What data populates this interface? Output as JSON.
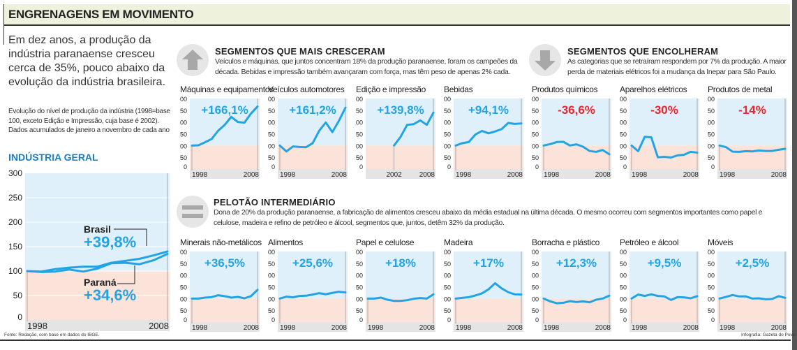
{
  "header": {
    "title": "ENGRENAGENS EM MOVIMENTO"
  },
  "intro": "Em dez anos, a produção da indústria paranaense cresceu cerca de 35%, pouco abaixo da evolução da indústria brasileira.",
  "caption": "Evolução do nível de produção da indústria (1998=base 100, exceto Edição e Impressão, cuja base é 2002). Dados acumulados de janeiro a novembro de cada ano",
  "footer": {
    "source": "Fonte: Redação, com base em dados do IBGE.",
    "credit": "Infografia: Gazeta do Povo"
  },
  "sections": [
    {
      "icon": "arrow-up-icon",
      "heading": "SEGMENTOS QUE MAIS CRESCERAM",
      "text": "Veículos e máquinas, que juntos concentram 18% da produção paranaense, foram os campeões da década. Bebidas e impressão também avançaram com força, mas têm peso de apenas 2% cada."
    },
    {
      "icon": "arrow-down-icon",
      "heading": "SEGMENTOS QUE ENCOLHERAM",
      "text": "As categorias que se retraíram respondem por 7% da produção. A maior perda de materiais elétricos foi a mudança da Inepar para São Paulo."
    },
    {
      "icon": "equals-icon",
      "heading": "PELOTÃO INTERMEDIÁRIO",
      "text": "Dona de 20% da produção paranaense, a fabricação de alimentos cresceu abaixo da média estadual na última década. O mesmo ocorreu com segmentos importantes como papel e celulose, madeira e refino de petróleo e álcool, segmentos que, juntos, detêm 32% da produção."
    }
  ],
  "colors": {
    "line": "#22a4e4",
    "positive": "#22a4e4",
    "negative": "#e8262f",
    "above_base": "#dff0fb",
    "below_base": "#fbe3d9",
    "year_band": "#e4e4e4"
  },
  "chart_data": [
    {
      "type": "line",
      "title": "INDÚSTRIA GERAL",
      "x": [
        1998,
        1999,
        2000,
        2001,
        2002,
        2003,
        2004,
        2005,
        2006,
        2007,
        2008
      ],
      "ylim": [
        0,
        300
      ],
      "yticks": [
        0,
        50,
        100,
        150,
        200,
        250,
        300
      ],
      "xticks": [
        "1998",
        "2008"
      ],
      "base": 100,
      "series": [
        {
          "name": "Brasil",
          "label": "+39,8%",
          "values": [
            100,
            99,
            104,
            107,
            109,
            109,
            117,
            121,
            125,
            132,
            140
          ]
        },
        {
          "name": "Paraná",
          "label": "+34,6%",
          "values": [
            100,
            98,
            99,
            103,
            99,
            105,
            116,
            117,
            114,
            122,
            135
          ]
        }
      ]
    },
    {
      "type": "line",
      "title": "Máquinas e equipamentos",
      "label": "+166,1%",
      "x_start": 1998,
      "xticks": [
        "1998",
        "2008"
      ],
      "ylim": [
        0,
        300
      ],
      "values": [
        100,
        101,
        114,
        128,
        163,
        188,
        222,
        200,
        197,
        236,
        266
      ]
    },
    {
      "type": "line",
      "title": "Veículos automotores",
      "label": "+161,2%",
      "x_start": 1998,
      "xticks": [
        "1998",
        "2008"
      ],
      "ylim": [
        0,
        300
      ],
      "values": [
        100,
        75,
        96,
        94,
        93,
        110,
        163,
        198,
        157,
        205,
        261
      ]
    },
    {
      "type": "line",
      "title": "Edição e impressão",
      "label": "+139,8%",
      "x_start": 2002,
      "xticks": [
        "2002",
        "2008"
      ],
      "ylim": [
        0,
        300
      ],
      "values": [
        100,
        137,
        188,
        191,
        207,
        188,
        240
      ]
    },
    {
      "type": "line",
      "title": "Bebidas",
      "label": "+94,1%",
      "x_start": 1998,
      "xticks": [
        "1998",
        "2008"
      ],
      "ylim": [
        0,
        300
      ],
      "values": [
        100,
        110,
        115,
        147,
        162,
        152,
        160,
        170,
        196,
        192,
        194
      ]
    },
    {
      "type": "line",
      "title": "Produtos químicos",
      "label": "-36,6%",
      "x_start": 1998,
      "xticks": [
        "1998",
        "2008"
      ],
      "ylim": [
        0,
        300
      ],
      "values": [
        100,
        106,
        115,
        116,
        100,
        105,
        95,
        77,
        73,
        81,
        63
      ]
    },
    {
      "type": "line",
      "title": "Aparelhos elétricos",
      "label": "-30%",
      "x_start": 1998,
      "xticks": [
        "1998",
        "2008"
      ],
      "ylim": [
        0,
        300
      ],
      "values": [
        100,
        76,
        137,
        135,
        50,
        52,
        49,
        58,
        61,
        73,
        70
      ]
    },
    {
      "type": "line",
      "title": "Produtos de metal",
      "label": "-14%",
      "x_start": 1998,
      "xticks": [
        "1998",
        "2008"
      ],
      "ylim": [
        0,
        300
      ],
      "values": [
        100,
        93,
        74,
        73,
        76,
        75,
        79,
        77,
        77,
        82,
        86
      ]
    },
    {
      "type": "line",
      "title": "Minerais não-metálicos",
      "label": "+36,5%",
      "x_start": 1998,
      "xticks": [
        "1998",
        "2008"
      ],
      "ylim": [
        0,
        300
      ],
      "values": [
        100,
        100,
        104,
        106,
        114,
        110,
        104,
        107,
        101,
        110,
        137
      ]
    },
    {
      "type": "line",
      "title": "Alimentos",
      "label": "+25,6%",
      "x_start": 1998,
      "xticks": [
        "1998",
        "2008"
      ],
      "ylim": [
        0,
        300
      ],
      "values": [
        100,
        108,
        105,
        111,
        112,
        117,
        123,
        118,
        124,
        129,
        126
      ]
    },
    {
      "type": "line",
      "title": "Papel e celulose",
      "label": "+18%",
      "x_start": 1998,
      "xticks": [
        "1998",
        "2008"
      ],
      "ylim": [
        0,
        300
      ],
      "values": [
        100,
        100,
        104,
        95,
        90,
        90,
        93,
        99,
        102,
        100,
        118
      ]
    },
    {
      "type": "line",
      "title": "Madeira",
      "label": "+17%",
      "x_start": 1998,
      "xticks": [
        "1998",
        "2008"
      ],
      "ylim": [
        0,
        300
      ],
      "values": [
        100,
        103,
        106,
        113,
        122,
        139,
        165,
        143,
        127,
        118,
        117
      ]
    },
    {
      "type": "line",
      "title": "Borracha e plástico",
      "label": "+12,3%",
      "x_start": 1998,
      "xticks": [
        "1998",
        "2008"
      ],
      "ylim": [
        0,
        300
      ],
      "values": [
        100,
        88,
        80,
        82,
        89,
        85,
        88,
        84,
        95,
        100,
        112
      ]
    },
    {
      "type": "line",
      "title": "Petróleo e álcool",
      "label": "+9,5%",
      "x_start": 1998,
      "xticks": [
        "1998",
        "2008"
      ],
      "ylim": [
        0,
        300
      ],
      "values": [
        100,
        117,
        111,
        118,
        111,
        109,
        94,
        106,
        105,
        101,
        110
      ]
    },
    {
      "type": "line",
      "title": "Móveis",
      "label": "+2,5%",
      "x_start": 1998,
      "xticks": [
        "1998",
        "2008"
      ],
      "ylim": [
        0,
        300
      ],
      "values": [
        100,
        107,
        115,
        109,
        109,
        100,
        101,
        97,
        98,
        110,
        103
      ]
    }
  ]
}
